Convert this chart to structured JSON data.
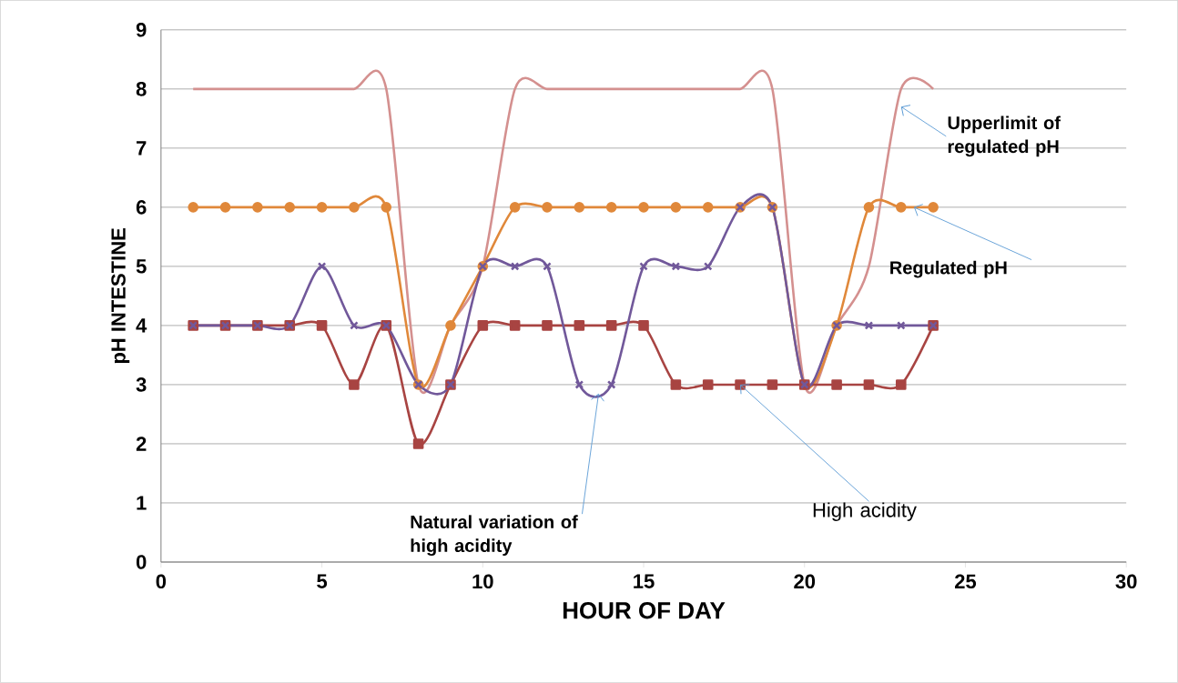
{
  "chart_data": {
    "type": "line",
    "xlabel": "HOUR OF DAY",
    "ylabel": "pH INTESTINE",
    "x": [
      1,
      2,
      3,
      4,
      5,
      6,
      7,
      8,
      9,
      10,
      11,
      12,
      13,
      14,
      15,
      16,
      17,
      18,
      19,
      20,
      21,
      22,
      23,
      24
    ],
    "series": [
      {
        "color": "#d4908f",
        "marker": "none",
        "values": [
          8,
          8,
          8,
          8,
          8,
          8,
          8,
          3,
          4,
          5,
          8,
          8,
          8,
          8,
          8,
          8,
          8,
          8,
          8,
          3,
          4,
          5,
          8,
          8
        ]
      },
      {
        "color": "#e0883a",
        "marker": "circle",
        "values": [
          6,
          6,
          6,
          6,
          6,
          6,
          6,
          3,
          4,
          5,
          6,
          6,
          6,
          6,
          6,
          6,
          6,
          6,
          6,
          3,
          4,
          6,
          6,
          6
        ]
      },
      {
        "color": "#a84442",
        "marker": "square",
        "values": [
          4,
          4,
          4,
          4,
          4,
          3,
          4,
          2,
          3,
          4,
          4,
          4,
          4,
          4,
          4,
          3,
          3,
          3,
          3,
          3,
          3,
          3,
          3,
          4
        ]
      },
      {
        "color": "#71589a",
        "marker": "cross",
        "values": [
          4,
          4,
          4,
          4,
          5,
          4,
          4,
          3,
          3,
          5,
          5,
          5,
          3,
          3,
          5,
          5,
          5,
          6,
          6,
          3,
          4,
          4,
          4,
          4
        ]
      }
    ],
    "xlim": [
      0,
      30
    ],
    "xticks": [
      0,
      5,
      10,
      15,
      20,
      25,
      30
    ],
    "ylim": [
      0,
      9
    ],
    "yticks": [
      0,
      1,
      2,
      3,
      4,
      5,
      6,
      7,
      8,
      9
    ],
    "grid": "y",
    "legend": false,
    "annotations": [
      {
        "text": "Upperlimit of regulated pH",
        "x": 23,
        "y": 7.7
      },
      {
        "text": "Regulated pH",
        "x": 23.4,
        "y": 6
      },
      {
        "text": "Natural variation of high acidity",
        "x": 13.6,
        "y": 2.85
      },
      {
        "text": "High acidity",
        "x": 18,
        "y": 3
      }
    ]
  }
}
